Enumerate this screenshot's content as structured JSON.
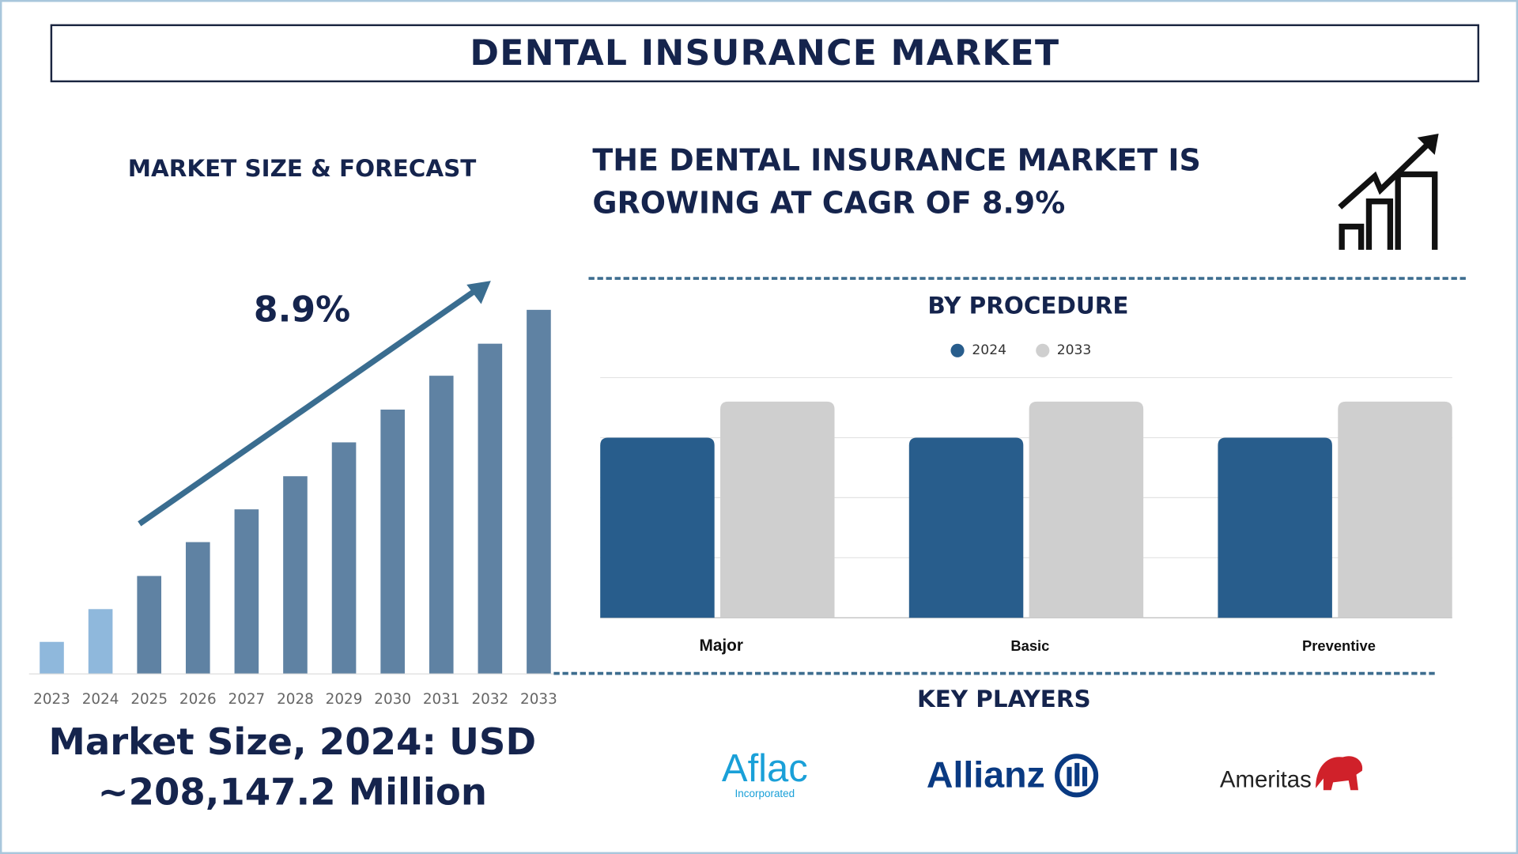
{
  "header": {
    "title": "DENTAL INSURANCE MARKET"
  },
  "left_panel": {
    "heading": "MARKET SIZE & FORECAST",
    "growth_label": "8.9%",
    "market_size_line1": "Market Size, 2024: USD",
    "market_size_line2": "~208,147.2 Million"
  },
  "right_panel": {
    "headline_line1": "THE DENTAL INSURANCE MARKET IS",
    "headline_line2": "GROWING AT CAGR OF 8.9%",
    "icon": "growth-chart-icon"
  },
  "key_players": {
    "heading": "KEY PLAYERS",
    "players": [
      {
        "name": "Aflac",
        "sub": "Incorporated"
      },
      {
        "name": "Allianz"
      },
      {
        "name": "Ameritas"
      }
    ]
  },
  "colors": {
    "navy": "#15244d",
    "bar_light": "#8fb8dc",
    "bar_main": "#5f82a3",
    "arrow": "#3a6d90",
    "s2024": "#285d8c",
    "s2033": "#cfcfcf"
  },
  "chart_data": [
    {
      "type": "bar",
      "title": "MARKET SIZE & FORECAST",
      "categories": [
        "2023",
        "2024",
        "2025",
        "2026",
        "2027",
        "2028",
        "2029",
        "2030",
        "2031",
        "2032",
        "2033"
      ],
      "values": [
        8.8,
        17.8,
        26.9,
        36.2,
        45.2,
        54.3,
        63.6,
        72.6,
        81.9,
        90.7,
        100
      ],
      "ylim": [
        0,
        100
      ],
      "grid": false,
      "note_axis": "no y-axis shown; relative heights",
      "annotation": "8.9%"
    },
    {
      "type": "bar",
      "title": "BY PROCEDURE",
      "categories": [
        "Major",
        "Basic",
        "Preventive"
      ],
      "series": [
        {
          "name": "2024",
          "values": [
            3.0,
            3.0,
            3.0
          ]
        },
        {
          "name": "2033",
          "values": [
            3.6,
            3.6,
            3.6
          ]
        }
      ],
      "ylim": [
        0,
        4
      ],
      "grid": true,
      "legend": "top-center"
    }
  ]
}
